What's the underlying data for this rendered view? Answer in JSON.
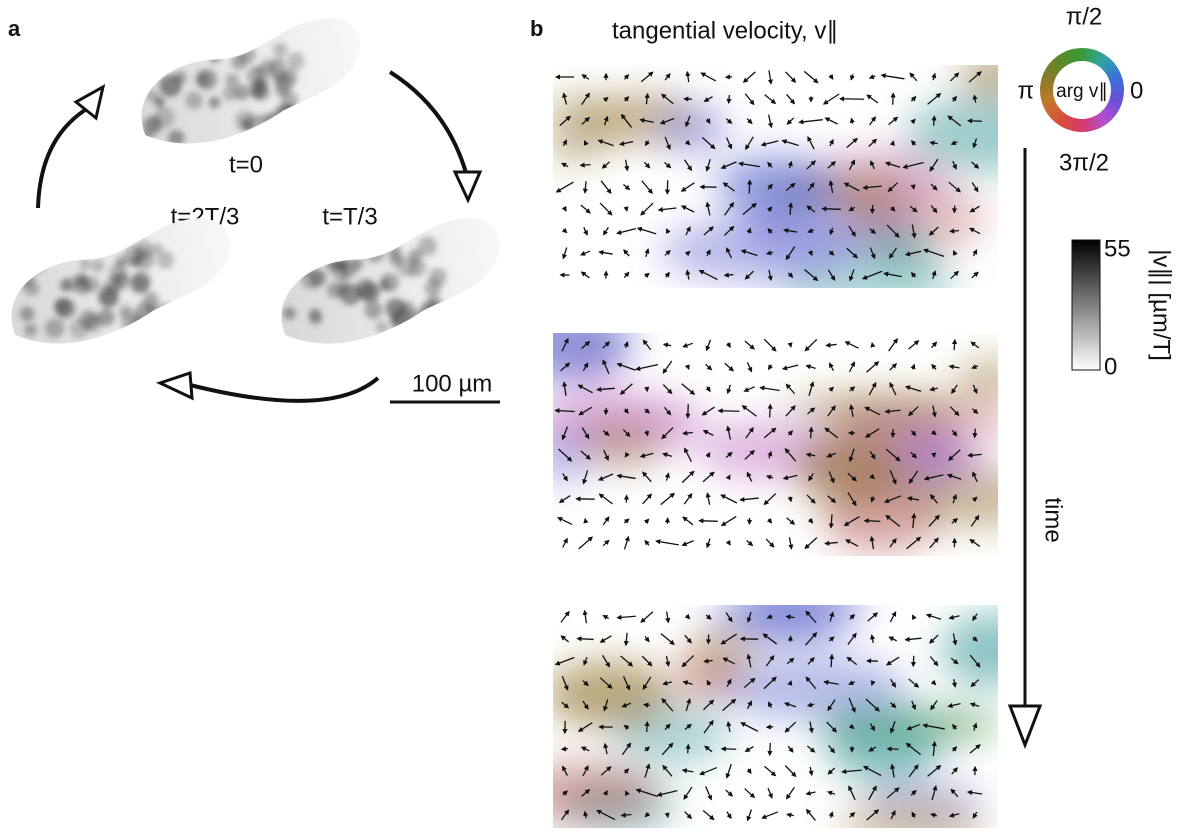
{
  "panel_a": {
    "label": "a",
    "states": [
      "t=0",
      "t=T/3",
      "t=2T/3"
    ],
    "scale_bar": "100 µm"
  },
  "panel_b": {
    "label": "b",
    "title": "tangential velocity, v∥",
    "color_wheel": {
      "center": "arg v∥",
      "top": "π/2",
      "left": "π",
      "right": "0",
      "bottom": "3π/2"
    },
    "colorbar": {
      "max": 55,
      "min": 0,
      "label": "|v∥| [µm/T]"
    },
    "time_axis": "time"
  }
}
